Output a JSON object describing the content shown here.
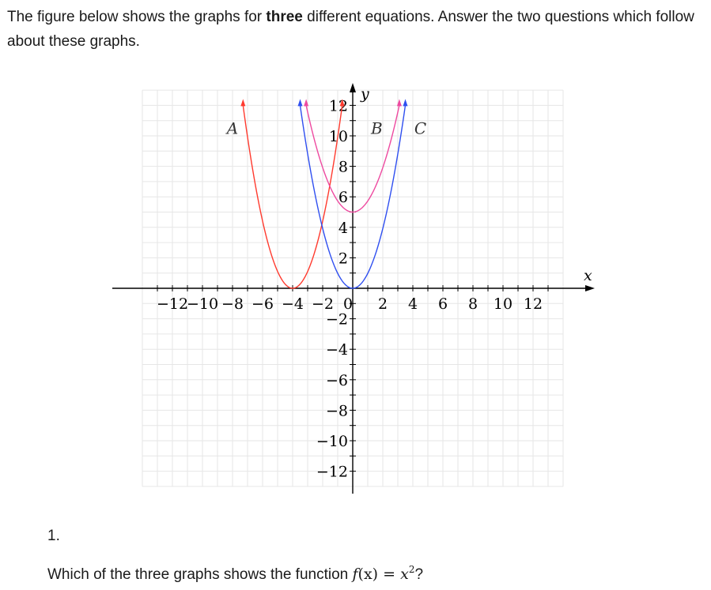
{
  "intro": {
    "part1": "The figure below shows the graphs for ",
    "bold": "three",
    "part2": " different equations. Answer the two questions which follow about these graphs."
  },
  "figure": {
    "x_axis_label": "x",
    "y_axis_label": "y",
    "x_tick_labels": [
      "−12",
      "−10",
      "−8",
      "−6",
      "−4",
      "−2",
      "0",
      "2",
      "4",
      "6",
      "8",
      "10",
      "12"
    ],
    "y_tick_labels": [
      "12",
      "10",
      "8",
      "6",
      "4",
      "2",
      "−2",
      "−4",
      "−6",
      "−8",
      "−10",
      "−12"
    ],
    "curves": [
      {
        "label": "A",
        "color": "#ff3a2e"
      },
      {
        "label": "B",
        "color": "#ee4aa0"
      },
      {
        "label": "C",
        "color": "#2f4ff0"
      }
    ],
    "grid_color": "#e6e6e6"
  },
  "chart_data": {
    "type": "line",
    "title": "",
    "xlabel": "x",
    "ylabel": "y",
    "xlim": [
      -14,
      14
    ],
    "ylim": [
      -13,
      13
    ],
    "grid": true,
    "series": [
      {
        "name": "A",
        "x": [
          -7.3,
          -6,
          -5,
          -4,
          -3,
          -2,
          -0.7
        ],
        "y": [
          12,
          4,
          1,
          0,
          1,
          4,
          12
        ]
      },
      {
        "name": "B",
        "x": [
          -3.1,
          -2,
          -1,
          0,
          1,
          2,
          3.1
        ],
        "y": [
          12,
          8,
          5.5,
          5,
          5.5,
          8,
          12
        ]
      },
      {
        "name": "C",
        "x": [
          -3.5,
          -2,
          -1,
          0,
          1,
          2,
          3.5
        ],
        "y": [
          12,
          4,
          1,
          0,
          1,
          4,
          12
        ]
      }
    ]
  },
  "question": {
    "number": "1.",
    "text": "Which of the three graphs shows the function ",
    "func_name": "f",
    "func_arg": "(x)",
    "equals": " = ",
    "base": "x",
    "exp": "2",
    "end": "?"
  }
}
